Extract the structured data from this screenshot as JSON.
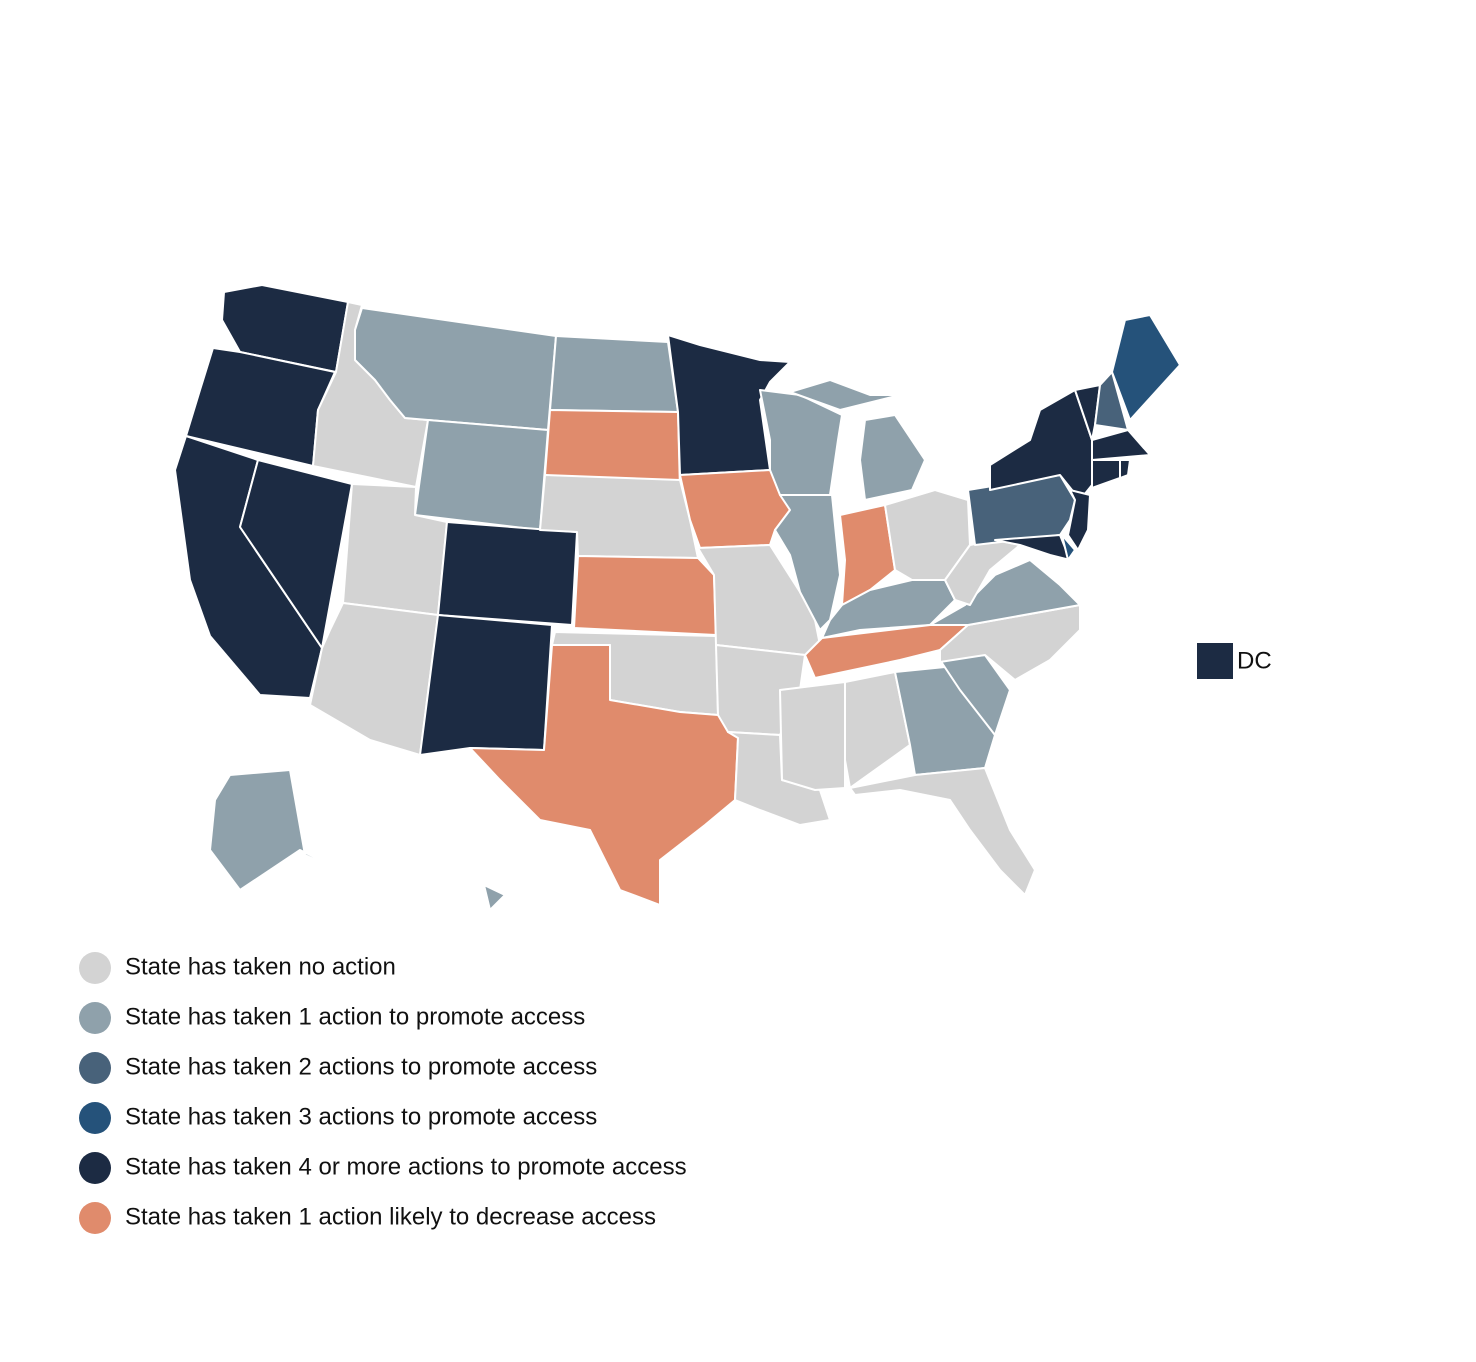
{
  "map": {
    "legend": [
      {
        "label": "State has taken no action",
        "color": "#d3d3d3"
      },
      {
        "label": "State has taken 1 action to promote access",
        "color": "#8fa1ab"
      },
      {
        "label": "State has taken 2 actions to promote access",
        "color": "#48627a"
      },
      {
        "label": "State has taken 3 actions to promote access",
        "color": "#25527a"
      },
      {
        "label": "State has taken 4 or more actions to promote access",
        "color": "#1c2b43"
      },
      {
        "label": "State has taken 1 action likely to decrease access",
        "color": "#e08b6c"
      }
    ],
    "dc_label": "DC"
  }
}
